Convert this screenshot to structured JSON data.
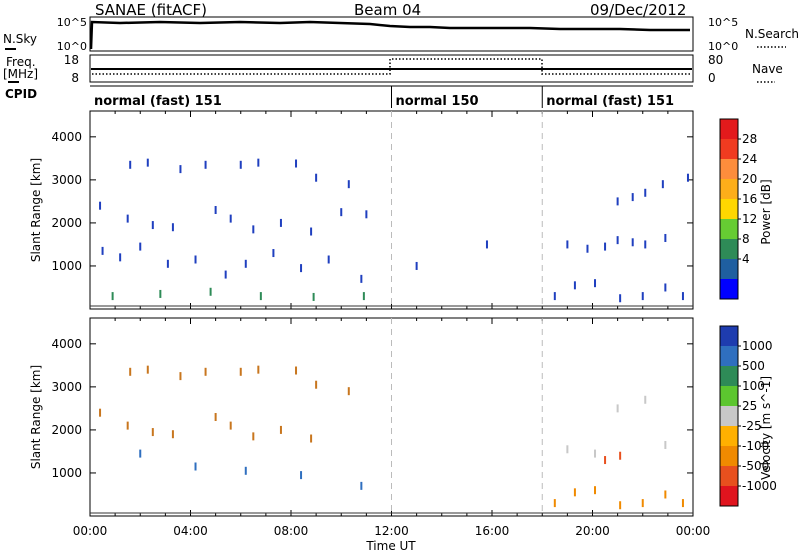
{
  "header": {
    "title": "SANAE (fitACF)",
    "beam": "Beam 04",
    "date": "09/Dec/2012"
  },
  "noise_panel": {
    "left_label": "N.Sky",
    "right_label": "N.Search",
    "left_ticks": [
      "10^5",
      "10^0"
    ],
    "right_ticks": [
      "10^5",
      "10^0"
    ]
  },
  "freq_panel": {
    "left_label_1": "Freq.",
    "left_label_2": "[MHz]",
    "right_label": "Nave",
    "left_ticks": [
      "18",
      "8"
    ],
    "right_ticks": [
      "80",
      "0"
    ]
  },
  "cpid": {
    "label": "CPID",
    "segments": [
      {
        "name": "normal (fast) 151",
        "start_h": 0,
        "end_h": 12
      },
      {
        "name": "normal 150",
        "start_h": 12,
        "end_h": 18
      },
      {
        "name": "normal (fast) 151",
        "start_h": 18,
        "end_h": 24
      }
    ]
  },
  "chart_data": [
    {
      "type": "scatter",
      "title": "Power",
      "xlabel": "Time UT",
      "ylabel": "Slant Range [km]",
      "xlim": [
        0,
        24
      ],
      "ylim": [
        0,
        4600
      ],
      "x_ticks": [
        "00:00",
        "04:00",
        "08:00",
        "12:00",
        "16:00",
        "20:00",
        "00:00"
      ],
      "y_ticks": [
        "1000",
        "2000",
        "3000",
        "4000"
      ],
      "colorbar": {
        "label": "Power [dB]",
        "ticks": [
          "28",
          "24",
          "20",
          "16",
          "12",
          "8",
          "4"
        ],
        "colors": [
          "#e31a1c",
          "#f03b20",
          "#fd8d3c",
          "#fdae1a",
          "#ffd700",
          "#66cc33",
          "#2e8b57",
          "#1f5fa0",
          "#0000ff"
        ]
      },
      "series": [
        {
          "x": [
            1.6,
            2.3,
            3.6,
            4.6,
            6.0,
            6.7,
            8.2,
            9.0,
            10.3,
            11.0
          ],
          "y": [
            3350,
            3400,
            3250,
            3350,
            3350,
            3400,
            3380,
            3050,
            2900,
            2200
          ],
          "color": "#1f3fbf"
        },
        {
          "x": [
            0.4,
            1.5,
            2.5,
            3.3,
            5.0,
            5.6,
            6.5,
            7.6,
            8.8,
            10.0
          ],
          "y": [
            2400,
            2100,
            1950,
            1900,
            2300,
            2100,
            1850,
            2000,
            1800,
            2250
          ],
          "color": "#1f3fbf"
        },
        {
          "x": [
            0.5,
            1.2,
            2.0,
            3.1,
            4.2,
            5.4,
            6.2,
            7.3,
            8.4,
            9.5,
            10.8
          ],
          "y": [
            1350,
            1200,
            1450,
            1050,
            1150,
            800,
            1050,
            1300,
            950,
            1150,
            700
          ],
          "color": "#1f3fbf"
        },
        {
          "x": [
            0.9,
            2.8,
            4.8,
            6.8,
            8.9,
            10.9
          ],
          "y": [
            300,
            350,
            400,
            300,
            280,
            300
          ],
          "color": "#2e8b57"
        },
        {
          "x": [
            13.0,
            15.8,
            19.0,
            19.8,
            20.5,
            21.0,
            21.6,
            22.1,
            22.9
          ],
          "y": [
            1000,
            1500,
            1500,
            1400,
            1450,
            1600,
            1550,
            1500,
            1650
          ],
          "color": "#1f3fbf"
        },
        {
          "x": [
            21.0,
            21.6,
            22.1,
            22.8,
            23.8
          ],
          "y": [
            2500,
            2600,
            2700,
            2900,
            3050
          ],
          "color": "#1f3fbf"
        },
        {
          "x": [
            18.5,
            19.3,
            20.1,
            21.1,
            22.0,
            22.9,
            23.6
          ],
          "y": [
            300,
            550,
            600,
            250,
            300,
            500,
            300
          ],
          "color": "#1f3fbf"
        }
      ]
    },
    {
      "type": "scatter",
      "title": "Velocity",
      "xlabel": "Time UT",
      "ylabel": "Slant Range [km]",
      "xlim": [
        0,
        24
      ],
      "ylim": [
        0,
        4600
      ],
      "x_ticks": [
        "00:00",
        "04:00",
        "08:00",
        "12:00",
        "16:00",
        "20:00",
        "00:00"
      ],
      "y_ticks": [
        "1000",
        "2000",
        "3000",
        "4000"
      ],
      "colorbar": {
        "label": "Velocity [m s^-1]",
        "ticks": [
          "1000",
          "500",
          "100",
          "25",
          "-25",
          "-100",
          "-500",
          "-1000"
        ],
        "colors": [
          "#1e3caf",
          "#2f6fbf",
          "#2e8b57",
          "#5cc62f",
          "#c8c8c8",
          "#ffb000",
          "#f08a00",
          "#e8501e",
          "#e0141e"
        ]
      },
      "series": [
        {
          "x": [
            1.6,
            2.3,
            3.6,
            4.6,
            6.0,
            6.7,
            8.2,
            9.0,
            10.3
          ],
          "y": [
            3350,
            3400,
            3250,
            3350,
            3350,
            3400,
            3380,
            3050,
            2900
          ],
          "color": "#c8761e"
        },
        {
          "x": [
            0.4,
            1.5,
            2.5,
            3.3,
            5.0,
            5.6,
            6.5,
            7.6,
            8.8
          ],
          "y": [
            2400,
            2100,
            1950,
            1900,
            2300,
            2100,
            1850,
            2000,
            1800
          ],
          "color": "#c8761e"
        },
        {
          "x": [
            2.0,
            4.2,
            6.2,
            8.4,
            10.8
          ],
          "y": [
            1450,
            1150,
            1050,
            950,
            700
          ],
          "color": "#2f6fbf"
        },
        {
          "x": [
            19.0,
            20.1,
            21.0,
            22.1,
            22.9
          ],
          "y": [
            1550,
            1450,
            2500,
            2700,
            1650
          ],
          "color": "#c8c8c8"
        },
        {
          "x": [
            20.5,
            21.1
          ],
          "y": [
            1300,
            1400
          ],
          "color": "#e8501e"
        },
        {
          "x": [
            18.5,
            19.3,
            20.1,
            21.1,
            22.0,
            22.9,
            23.6
          ],
          "y": [
            300,
            550,
            600,
            250,
            300,
            500,
            300
          ],
          "color": "#f08a00"
        }
      ]
    }
  ]
}
